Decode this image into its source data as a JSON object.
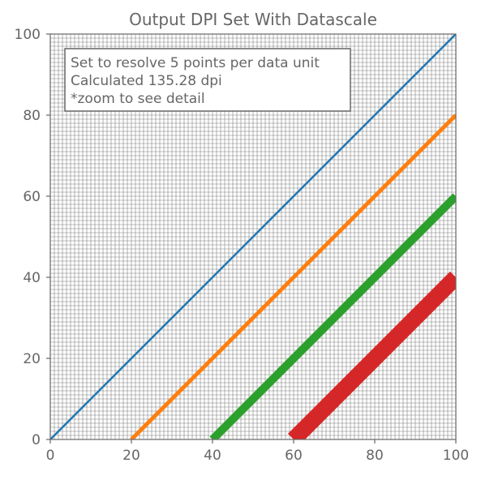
{
  "chart_data": {
    "type": "line",
    "title": "Output DPI Set With Datascale",
    "xlabel": "",
    "ylabel": "",
    "xlim": [
      0,
      100
    ],
    "ylim": [
      0,
      100
    ],
    "x_ticks": [
      0,
      20,
      40,
      60,
      80,
      100
    ],
    "y_ticks": [
      0,
      20,
      40,
      60,
      80,
      100
    ],
    "minor_grid_step": 1,
    "grid": true,
    "annotation": {
      "position": "top-left",
      "lines": [
        "Set to resolve 5 points per data unit",
        "Calculated 135.28 dpi",
        "*zoom to see detail"
      ]
    },
    "series": [
      {
        "x": [
          0,
          100
        ],
        "y": [
          0,
          100
        ],
        "line_width_data_units": 0.5,
        "color": "#1f77b4"
      },
      {
        "x": [
          20,
          100
        ],
        "y": [
          0,
          80
        ],
        "line_width_data_units": 1.0,
        "color": "#ff7f0e"
      },
      {
        "x": [
          40,
          100
        ],
        "y": [
          0,
          60
        ],
        "line_width_data_units": 2.0,
        "color": "#2ca02c"
      },
      {
        "x": [
          60,
          100
        ],
        "y": [
          0,
          40
        ],
        "line_width_data_units": 4.0,
        "color": "#d62728"
      }
    ],
    "colors": {
      "axis_text": "#666666",
      "spine": "#666666",
      "grid": "#808080"
    }
  }
}
